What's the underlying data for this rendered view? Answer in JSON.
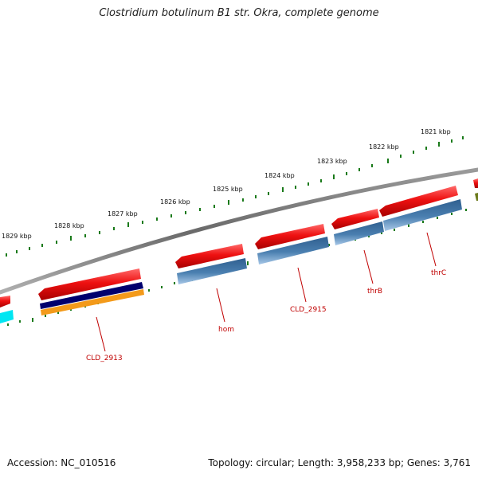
{
  "title": "Clostridium botulinum B1 str. Okra, complete genome",
  "footer": {
    "accession": "Accession: NC_010516",
    "summary": "Topology: circular; Length: 3,958,233 bp; Genes: 3,761"
  },
  "colors": {
    "backbone": "#808080",
    "tick": "#1a7a1a",
    "gene_red": "#ee1111",
    "gene_steel": "#4a7fb0",
    "gene_navy": "#00006e",
    "gene_orange": "#f39a1a",
    "gene_cyan": "#00e6f2",
    "label_red": "#c00000"
  },
  "scale_labels": [
    "1821 kbp",
    "1822 kbp",
    "1823 kbp",
    "1824 kbp",
    "1825 kbp",
    "1826 kbp",
    "1827 kbp",
    "1828 kbp",
    "1829 kbp"
  ],
  "gene_labels": [
    "CLD_2913",
    "hom",
    "CLD_2915",
    "thrB",
    "thrC"
  ]
}
